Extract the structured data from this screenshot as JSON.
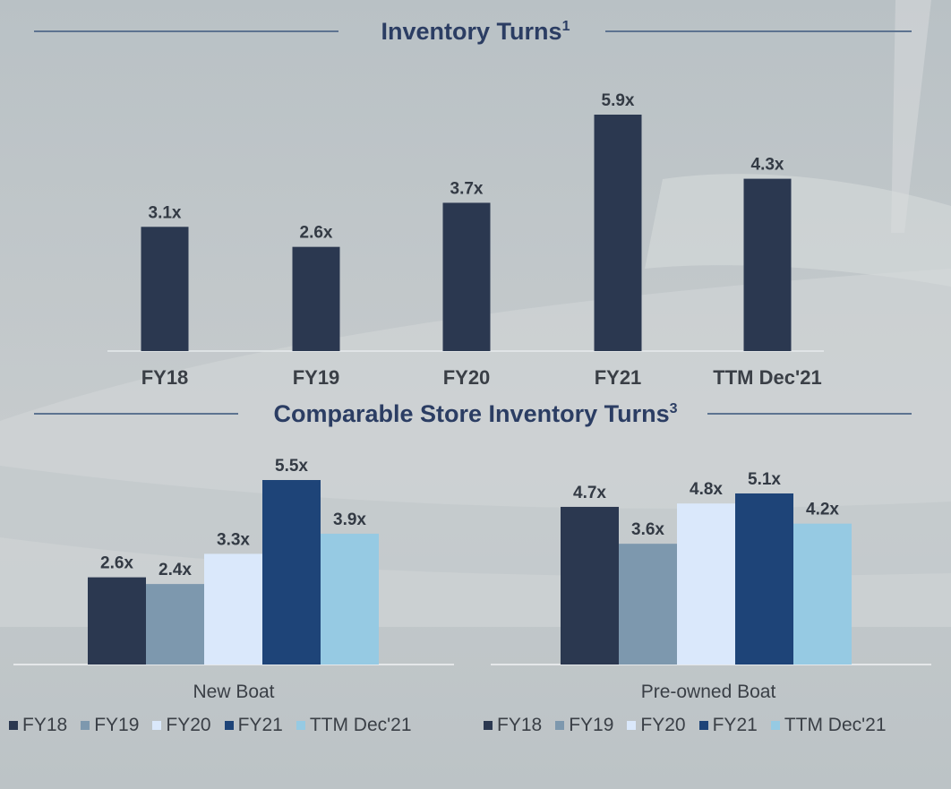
{
  "colors": {
    "FY18": "#2b3850",
    "FY19": "#7d98ae",
    "FY20": "#dae8fb",
    "FY21": "#1e4478",
    "TTM Dec'21": "#96cae3"
  },
  "chart_data": [
    {
      "type": "bar",
      "title": "Inventory Turns",
      "title_superscript": "1",
      "categories": [
        "FY18",
        "FY19",
        "FY20",
        "FY21",
        "TTM Dec'21"
      ],
      "values": [
        3.1,
        2.6,
        3.7,
        5.9,
        4.3
      ],
      "value_labels": [
        "3.1x",
        "2.6x",
        "3.7x",
        "5.9x",
        "4.3x"
      ],
      "xlabel": "",
      "ylabel": "",
      "ylim": [
        0,
        6.5
      ],
      "grid": false
    },
    {
      "type": "bar",
      "title": "Comparable Store Inventory Turns",
      "title_superscript": "3",
      "categories": [
        "New Boat",
        "Pre-owned Boat"
      ],
      "series": [
        {
          "name": "FY18",
          "values": [
            2.6,
            4.7
          ],
          "labels": [
            "2.6x",
            "4.7x"
          ]
        },
        {
          "name": "FY19",
          "values": [
            2.4,
            3.6
          ],
          "labels": [
            "2.4x",
            "3.6x"
          ]
        },
        {
          "name": "FY20",
          "values": [
            3.3,
            4.8
          ],
          "labels": [
            "3.3x",
            "4.8x"
          ]
        },
        {
          "name": "FY21",
          "values": [
            5.5,
            5.1
          ],
          "labels": [
            "5.5x",
            "5.1x"
          ]
        },
        {
          "name": "TTM Dec'21",
          "values": [
            3.9,
            4.2
          ],
          "labels": [
            "3.9x",
            "4.2x"
          ]
        }
      ],
      "legend": [
        "FY18",
        "FY19",
        "FY20",
        "FY21",
        "TTM Dec'21"
      ],
      "legend_placement": "bottom",
      "xlabel": "",
      "ylabel": "",
      "ylim": [
        0,
        6.0
      ],
      "grid": false
    }
  ]
}
